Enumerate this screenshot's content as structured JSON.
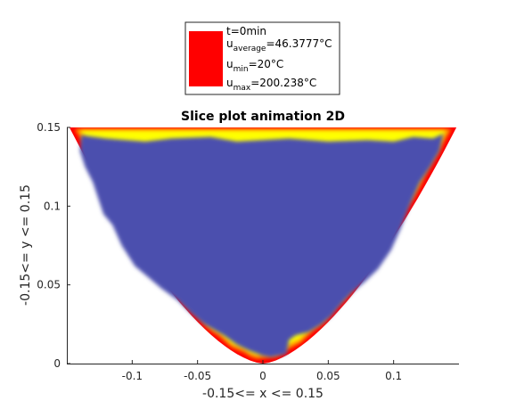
{
  "chart_data": {
    "type": "heatmap",
    "title": "Slice plot animation 2D",
    "xlabel": "-0.15<= x <= 0.15",
    "ylabel": "-0.15<= y <= 0.15",
    "xlim": [
      -0.15,
      0.15
    ],
    "ylim": [
      0,
      0.15
    ],
    "xticks": [
      -0.1,
      -0.05,
      0,
      0.05,
      0.1
    ],
    "xtick_labels": [
      "-0.1",
      "-0.05",
      "0",
      "0.05",
      "0.1"
    ],
    "yticks": [
      0,
      0.05,
      0.1,
      0.15
    ],
    "ytick_labels": [
      "0",
      "0.05",
      "0.1",
      "0.15"
    ],
    "grid": false,
    "legend_position": "top-center",
    "colors": {
      "interior": "#4b4fae",
      "hot": "#ff0000",
      "mid": "#ff9900",
      "warm": "#ffff00",
      "legend_swatch": "#ff0000"
    },
    "legend": {
      "line1": "t=0min",
      "avg_prefix": "u",
      "avg_sub": "average",
      "avg_value": "=46.3777°C",
      "min_prefix": "u",
      "min_sub": "min",
      "min_value": "=20°C",
      "max_prefix": "u",
      "max_sub": "max",
      "max_value": "=200.238°C"
    }
  }
}
